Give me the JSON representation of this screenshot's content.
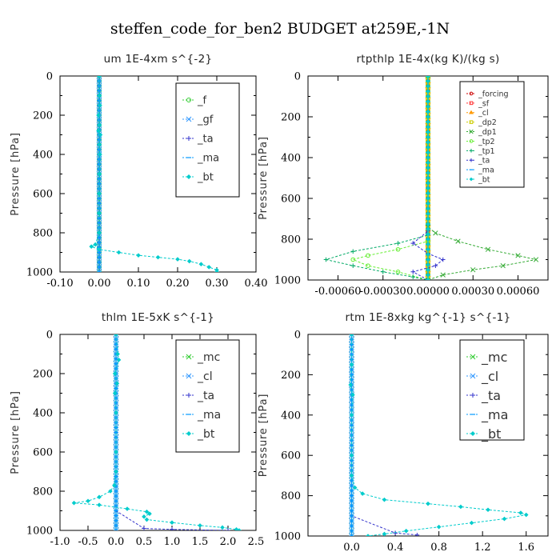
{
  "title": "steffen_code_for_ben2  BUDGET at259E,-1N",
  "chart_data": [
    {
      "type": "line",
      "title": "um  1E-4xm s^{-2}",
      "ylabel": "Pressure [hPa]",
      "ylim": [
        1000,
        0
      ],
      "xlim": [
        -0.1,
        0.4
      ],
      "xticks": [
        "-0.10",
        "0.00",
        "0.10",
        "0.20",
        "0.30",
        "0.40"
      ],
      "xtick_values": [
        -0.1,
        0.0,
        0.1,
        0.2,
        0.3,
        0.4
      ],
      "yticks": [
        0,
        200,
        400,
        600,
        800,
        1000
      ],
      "legend_position": "top-right",
      "series": [
        {
          "name": "_f",
          "color": "#33cc33",
          "marker": "circle",
          "points": [
            [
              0.0,
              0
            ],
            [
              0.0,
              200
            ],
            [
              0.0,
              400
            ],
            [
              0.0,
              600
            ],
            [
              0.0,
              800
            ],
            [
              0.0,
              1000
            ]
          ]
        },
        {
          "name": "_gf",
          "color": "#3399ff",
          "marker": "x",
          "points": [
            [
              0.0,
              0
            ],
            [
              0.0,
              500
            ],
            [
              0.0,
              1000
            ]
          ]
        },
        {
          "name": "_ta",
          "color": "#3333cc",
          "marker": "plus",
          "points": [
            [
              0.0,
              0
            ],
            [
              0.0,
              850
            ],
            [
              0.0,
              1000
            ]
          ]
        },
        {
          "name": "_ma",
          "color": "#0099ff",
          "marker": "dash",
          "points": [
            [
              0.0,
              0
            ],
            [
              0.0,
              500
            ],
            [
              0.0,
              1000
            ]
          ]
        },
        {
          "name": "_bt",
          "color": "#00cccc",
          "marker": "diamond",
          "points": [
            [
              0.0,
              0
            ],
            [
              0.001,
              100
            ],
            [
              0.002,
              150
            ],
            [
              -0.002,
              200
            ],
            [
              0.001,
              250
            ],
            [
              -0.002,
              280
            ],
            [
              0.003,
              300
            ],
            [
              0.001,
              350
            ],
            [
              0.002,
              400
            ],
            [
              0.001,
              500
            ],
            [
              0.0,
              600
            ],
            [
              0.0,
              700
            ],
            [
              0.0,
              800
            ],
            [
              -0.01,
              860
            ],
            [
              -0.02,
              870
            ],
            [
              0.0,
              885
            ],
            [
              0.05,
              900
            ],
            [
              0.1,
              915
            ],
            [
              0.15,
              925
            ],
            [
              0.2,
              935
            ],
            [
              0.23,
              945
            ],
            [
              0.26,
              960
            ],
            [
              0.28,
              975
            ],
            [
              0.3,
              990
            ],
            [
              0.3,
              1000
            ]
          ]
        }
      ]
    },
    {
      "type": "line",
      "title": "rtpthlp  1E-4x(kg K)/(kg s)",
      "ylabel": "Pressure [hPa]",
      "ylim": [
        1000,
        0
      ],
      "xlim": [
        -0.0008,
        0.0008
      ],
      "xticks": [
        "-0.00060",
        "-0.00030",
        "0.00000",
        "0.00030",
        "0.00060"
      ],
      "xtick_values": [
        -0.0006,
        -0.0003,
        0.0,
        0.0003,
        0.0006
      ],
      "yticks": [
        0,
        200,
        400,
        600,
        800,
        1000
      ],
      "legend_position": "top-right",
      "series": [
        {
          "name": "_forcing",
          "color": "#cc0000",
          "marker": "circle",
          "points": [
            [
              0.0,
              0
            ],
            [
              0.0,
              1000
            ]
          ]
        },
        {
          "name": "_sf",
          "color": "#ff3333",
          "marker": "square",
          "points": [
            [
              0.0,
              0
            ],
            [
              0.0,
              1000
            ]
          ]
        },
        {
          "name": "_cl",
          "color": "#ff9900",
          "marker": "triangle",
          "points": [
            [
              0.0,
              0
            ],
            [
              0.0,
              1000
            ]
          ]
        },
        {
          "name": "_dp2",
          "color": "#cccc00",
          "marker": "square",
          "points": [
            [
              0.0,
              0
            ],
            [
              0.0,
              1000
            ]
          ]
        },
        {
          "name": "_dp1",
          "color": "#33aa33",
          "marker": "x",
          "points": [
            [
              0.0,
              0
            ],
            [
              0.0,
              740
            ],
            [
              5e-05,
              770
            ],
            [
              0.0002,
              810
            ],
            [
              0.0004,
              850
            ],
            [
              0.0006,
              880
            ],
            [
              0.00072,
              900
            ],
            [
              0.0005,
              930
            ],
            [
              0.0003,
              950
            ],
            [
              0.0001,
              975
            ],
            [
              0.0,
              1000
            ]
          ]
        },
        {
          "name": "_tp2",
          "color": "#66ee33",
          "marker": "circle",
          "points": [
            [
              0.0,
              0
            ],
            [
              0.0,
              810
            ],
            [
              -0.0002,
              850
            ],
            [
              -0.0004,
              880
            ],
            [
              -0.0005,
              900
            ],
            [
              -0.0004,
              930
            ],
            [
              -0.0002,
              960
            ],
            [
              0.0,
              1000
            ]
          ]
        },
        {
          "name": "_tp1",
          "color": "#00aa66",
          "marker": "plus",
          "points": [
            [
              0.0,
              0
            ],
            [
              0.0,
              780
            ],
            [
              -0.0002,
              820
            ],
            [
              -0.0005,
              860
            ],
            [
              -0.00068,
              900
            ],
            [
              -0.0005,
              930
            ],
            [
              -0.0003,
              960
            ],
            [
              -0.0001,
              985
            ],
            [
              0.0,
              1000
            ]
          ]
        },
        {
          "name": "_ta",
          "color": "#3333cc",
          "marker": "plus",
          "points": [
            [
              0.0,
              0
            ],
            [
              0.0,
              760
            ],
            [
              -0.0001,
              820
            ],
            [
              0.0,
              870
            ],
            [
              0.0001,
              900
            ],
            [
              5e-05,
              930
            ],
            [
              -0.0001,
              960
            ],
            [
              0.0,
              1000
            ]
          ]
        },
        {
          "name": "_ma",
          "color": "#0099ff",
          "marker": "dash",
          "points": [
            [
              0.0,
              0
            ],
            [
              0.0,
              1000
            ]
          ]
        },
        {
          "name": "_bt",
          "color": "#00cccc",
          "marker": "diamond",
          "points": [
            [
              0.0,
              0
            ],
            [
              0.0,
              1000
            ]
          ]
        }
      ]
    },
    {
      "type": "line",
      "title": "thlm  1E-5xK s^{-1}",
      "ylabel": "Pressure [hPa]",
      "ylim": [
        1000,
        0
      ],
      "xlim": [
        -1.0,
        2.5
      ],
      "xticks": [
        "-1.0",
        "-0.5",
        "0.0",
        "0.5",
        "1.0",
        "1.5",
        "2.0",
        "2.5"
      ],
      "xtick_values": [
        -1.0,
        -0.5,
        0.0,
        0.5,
        1.0,
        1.5,
        2.0,
        2.5
      ],
      "yticks": [
        0,
        200,
        400,
        600,
        800,
        1000
      ],
      "legend_position": "top-right",
      "series": [
        {
          "name": "_mc",
          "color": "#33cc33",
          "marker": "x",
          "points": [
            [
              0.0,
              0
            ],
            [
              0.0,
              200
            ],
            [
              0.0,
              400
            ],
            [
              0.0,
              600
            ],
            [
              0.0,
              800
            ],
            [
              0.0,
              1000
            ]
          ]
        },
        {
          "name": "_cl",
          "color": "#3399ff",
          "marker": "x",
          "points": [
            [
              0.0,
              0
            ],
            [
              0.0,
              500
            ],
            [
              0.0,
              1000
            ]
          ]
        },
        {
          "name": "_ta",
          "color": "#3333cc",
          "marker": "plus",
          "points": [
            [
              0.0,
              0
            ],
            [
              0.0,
              900
            ],
            [
              0.5,
              990
            ],
            [
              1.0,
              995
            ],
            [
              2.0,
              1000
            ]
          ]
        },
        {
          "name": "_ma",
          "color": "#0099ff",
          "marker": "dash",
          "points": [
            [
              0.0,
              0
            ],
            [
              0.0,
              1000
            ]
          ]
        },
        {
          "name": "_bt",
          "color": "#00cccc",
          "marker": "diamond",
          "points": [
            [
              0.0,
              0
            ],
            [
              0.03,
              100
            ],
            [
              0.05,
              130
            ],
            [
              -0.02,
              200
            ],
            [
              0.02,
              250
            ],
            [
              -0.02,
              300
            ],
            [
              0.0,
              400
            ],
            [
              0.0,
              600
            ],
            [
              0.0,
              700
            ],
            [
              -0.03,
              770
            ],
            [
              -0.1,
              800
            ],
            [
              -0.3,
              830
            ],
            [
              -0.5,
              850
            ],
            [
              -0.75,
              860
            ],
            [
              -0.3,
              870
            ],
            [
              0.2,
              890
            ],
            [
              0.55,
              905
            ],
            [
              0.6,
              915
            ],
            [
              0.5,
              930
            ],
            [
              0.55,
              945
            ],
            [
              1.0,
              960
            ],
            [
              1.5,
              975
            ],
            [
              1.9,
              985
            ],
            [
              2.15,
              995
            ],
            [
              2.2,
              1000
            ]
          ]
        }
      ]
    },
    {
      "type": "line",
      "title": "rtm  1E-8xkg kg^{-1} s^{-1}",
      "ylabel": "Pressure [hPa]",
      "ylim": [
        1000,
        0
      ],
      "xlim": [
        -0.4,
        1.8
      ],
      "xticks": [
        "0.0",
        "0.4",
        "0.8",
        "1.2",
        "1.6"
      ],
      "xtick_values": [
        0.0,
        0.4,
        0.8,
        1.2,
        1.6
      ],
      "yticks": [
        0,
        200,
        400,
        600,
        800,
        1000
      ],
      "legend_position": "top-right",
      "series": [
        {
          "name": "_mc",
          "color": "#33cc33",
          "marker": "x",
          "points": [
            [
              0.0,
              0
            ],
            [
              0.0,
              200
            ],
            [
              0.0,
              400
            ],
            [
              0.0,
              600
            ],
            [
              0.0,
              800
            ],
            [
              0.0,
              1000
            ]
          ]
        },
        {
          "name": "_cl",
          "color": "#3399ff",
          "marker": "x",
          "points": [
            [
              0.0,
              0
            ],
            [
              0.0,
              1000
            ]
          ]
        },
        {
          "name": "_ta",
          "color": "#3333cc",
          "marker": "plus",
          "points": [
            [
              0.0,
              0
            ],
            [
              0.0,
              900
            ],
            [
              0.4,
              985
            ],
            [
              0.6,
              995
            ]
          ]
        },
        {
          "name": "_ma",
          "color": "#0099ff",
          "marker": "dash",
          "points": [
            [
              0.0,
              0
            ],
            [
              0.0,
              1000
            ]
          ]
        },
        {
          "name": "_bt",
          "color": "#00cccc",
          "marker": "diamond",
          "points": [
            [
              0.0,
              0
            ],
            [
              0.0,
              150
            ],
            [
              -0.01,
              250
            ],
            [
              0.01,
              300
            ],
            [
              0.0,
              400
            ],
            [
              0.0,
              600
            ],
            [
              0.0,
              700
            ],
            [
              0.03,
              760
            ],
            [
              0.1,
              790
            ],
            [
              0.3,
              820
            ],
            [
              0.7,
              840
            ],
            [
              1.0,
              855
            ],
            [
              1.25,
              870
            ],
            [
              1.55,
              885
            ],
            [
              1.6,
              895
            ],
            [
              1.4,
              915
            ],
            [
              1.1,
              935
            ],
            [
              0.8,
              955
            ],
            [
              0.5,
              975
            ],
            [
              0.3,
              990
            ],
            [
              0.15,
              1000
            ]
          ]
        }
      ]
    }
  ]
}
